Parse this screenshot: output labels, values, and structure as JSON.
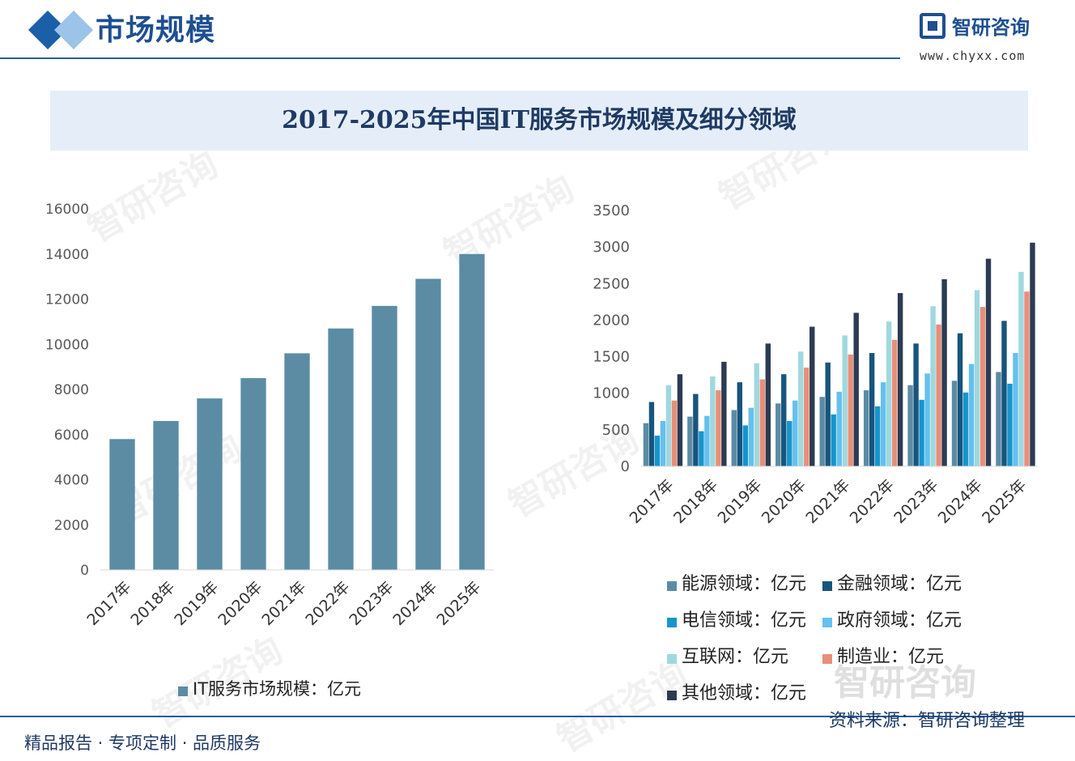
{
  "header": {
    "section_title": "市场规模",
    "brand_name": "智研咨询",
    "brand_url": "www.chyxx.com"
  },
  "title": "2017-2025年中国IT服务市场规模及细分领域",
  "footer": {
    "slogan": "精品报告 · 专项定制 · 品质服务",
    "source": "资料来源：智研咨询整理"
  },
  "watermark": "智研咨询",
  "colors": {
    "accent": "#1e4f91",
    "banner_bg": "#e5eef8",
    "total_bar": "#5b8ca4"
  },
  "chart_data": [
    {
      "type": "bar",
      "categories": [
        "2017年",
        "2018年",
        "2019年",
        "2020年",
        "2021年",
        "2022年",
        "2023年",
        "2024年",
        "2025年"
      ],
      "series": [
        {
          "name": "IT服务市场规模：亿元",
          "color": "#5b8ca4",
          "values": [
            5800,
            6600,
            7600,
            8500,
            9600,
            10700,
            11700,
            12900,
            14000
          ]
        }
      ],
      "ylim": [
        0,
        16000
      ],
      "yticks": [
        0,
        2000,
        4000,
        6000,
        8000,
        10000,
        12000,
        14000,
        16000
      ],
      "legend_position": "bottom"
    },
    {
      "type": "bar",
      "categories": [
        "2017年",
        "2018年",
        "2019年",
        "2020年",
        "2021年",
        "2022年",
        "2023年",
        "2024年",
        "2025年"
      ],
      "series": [
        {
          "name": "能源领域：亿元",
          "color": "#5b8ca4",
          "values": [
            590,
            680,
            770,
            860,
            950,
            1040,
            1110,
            1170,
            1290
          ]
        },
        {
          "name": "金融领域：亿元",
          "color": "#17557d",
          "values": [
            880,
            990,
            1150,
            1260,
            1420,
            1550,
            1680,
            1820,
            1990
          ]
        },
        {
          "name": "电信领域：亿元",
          "color": "#1795cc",
          "values": [
            420,
            480,
            560,
            620,
            710,
            820,
            910,
            1010,
            1130
          ]
        },
        {
          "name": "政府领域：亿元",
          "color": "#65c0ee",
          "values": [
            620,
            690,
            800,
            900,
            1020,
            1150,
            1270,
            1400,
            1550
          ]
        },
        {
          "name": "互联网：亿元",
          "color": "#9fd8df",
          "values": [
            1110,
            1230,
            1410,
            1570,
            1790,
            1980,
            2190,
            2410,
            2660
          ]
        },
        {
          "name": "制造业：亿元",
          "color": "#e88f78",
          "values": [
            900,
            1040,
            1190,
            1350,
            1530,
            1730,
            1940,
            2180,
            2390
          ]
        },
        {
          "name": "其他领域：亿元",
          "color": "#2b3b52",
          "values": [
            1260,
            1430,
            1680,
            1910,
            2100,
            2370,
            2560,
            2840,
            3060
          ]
        }
      ],
      "ylim": [
        0,
        3500
      ],
      "yticks": [
        0,
        500,
        1000,
        1500,
        2000,
        2500,
        3000,
        3500
      ],
      "legend_position": "bottom"
    }
  ]
}
